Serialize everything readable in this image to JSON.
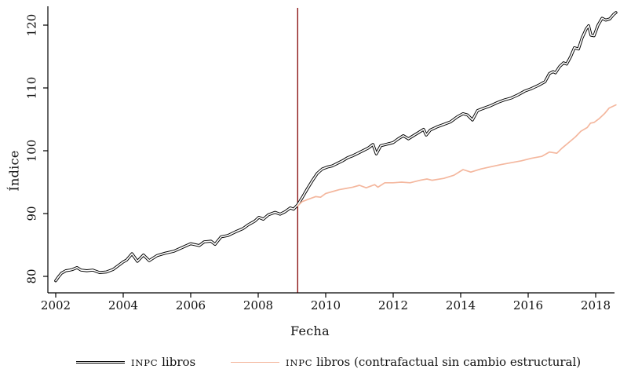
{
  "axis": {
    "ylabel": "Índice",
    "xlabel": "Fecha"
  },
  "legend": {
    "series1": {
      "acronym": "INPC",
      "rest": "libros"
    },
    "series2": {
      "acronym": "INPC",
      "rest": "libros (contrafactual sin cambio estructural)"
    }
  },
  "colors": {
    "series1_outer": "#000000",
    "series1_inner": "#ffffff",
    "series2": "#f4b79e",
    "vline": "#8c1616",
    "axis": "#000000"
  },
  "chart_data": {
    "type": "line",
    "title": "",
    "xlabel": "Fecha",
    "ylabel": "Índice",
    "x_ticks": [
      2002,
      2004,
      2006,
      2008,
      2010,
      2012,
      2014,
      2016,
      2018
    ],
    "y_ticks": [
      80,
      90,
      100,
      110,
      120
    ],
    "x_range": [
      2001.77,
      2018.65
    ],
    "y_range": [
      78.5,
      123.5
    ],
    "grid": false,
    "legend_position": "bottom",
    "vline": {
      "x": 2009.17,
      "color": "#8c1616"
    },
    "series": [
      {
        "name": "INPC libros",
        "style": "double-black",
        "points": [
          [
            2002.0,
            79.3
          ],
          [
            2002.08,
            79.9
          ],
          [
            2002.17,
            80.5
          ],
          [
            2002.3,
            80.9
          ],
          [
            2002.42,
            81.0
          ],
          [
            2002.5,
            81.1
          ],
          [
            2002.63,
            81.4
          ],
          [
            2002.75,
            81.0
          ],
          [
            2002.92,
            80.9
          ],
          [
            2003.1,
            81.0
          ],
          [
            2003.3,
            80.6
          ],
          [
            2003.5,
            80.7
          ],
          [
            2003.7,
            81.1
          ],
          [
            2003.9,
            81.9
          ],
          [
            2004.0,
            82.3
          ],
          [
            2004.1,
            82.6
          ],
          [
            2004.26,
            83.6
          ],
          [
            2004.42,
            82.4
          ],
          [
            2004.6,
            83.4
          ],
          [
            2004.77,
            82.5
          ],
          [
            2005.0,
            83.3
          ],
          [
            2005.25,
            83.7
          ],
          [
            2005.5,
            84.0
          ],
          [
            2005.75,
            84.6
          ],
          [
            2006.0,
            85.2
          ],
          [
            2006.25,
            84.9
          ],
          [
            2006.4,
            85.5
          ],
          [
            2006.6,
            85.6
          ],
          [
            2006.72,
            85.1
          ],
          [
            2006.9,
            86.3
          ],
          [
            2007.1,
            86.5
          ],
          [
            2007.33,
            87.1
          ],
          [
            2007.55,
            87.6
          ],
          [
            2007.7,
            88.2
          ],
          [
            2007.9,
            88.8
          ],
          [
            2008.02,
            89.4
          ],
          [
            2008.15,
            89.1
          ],
          [
            2008.3,
            89.8
          ],
          [
            2008.5,
            90.2
          ],
          [
            2008.65,
            89.9
          ],
          [
            2008.8,
            90.3
          ],
          [
            2008.95,
            90.9
          ],
          [
            2009.05,
            90.7
          ],
          [
            2009.17,
            91.4
          ],
          [
            2009.3,
            92.5
          ],
          [
            2009.45,
            93.9
          ],
          [
            2009.6,
            95.2
          ],
          [
            2009.75,
            96.4
          ],
          [
            2009.9,
            97.1
          ],
          [
            2010.05,
            97.4
          ],
          [
            2010.2,
            97.6
          ],
          [
            2010.35,
            98.0
          ],
          [
            2010.5,
            98.4
          ],
          [
            2010.65,
            98.9
          ],
          [
            2010.8,
            99.2
          ],
          [
            2010.95,
            99.6
          ],
          [
            2011.1,
            100.0
          ],
          [
            2011.25,
            100.4
          ],
          [
            2011.4,
            101.0
          ],
          [
            2011.5,
            99.5
          ],
          [
            2011.63,
            100.8
          ],
          [
            2011.85,
            101.1
          ],
          [
            2012.0,
            101.3
          ],
          [
            2012.15,
            101.9
          ],
          [
            2012.3,
            102.4
          ],
          [
            2012.45,
            101.9
          ],
          [
            2012.6,
            102.4
          ],
          [
            2012.75,
            102.9
          ],
          [
            2012.9,
            103.4
          ],
          [
            2012.98,
            102.5
          ],
          [
            2013.1,
            103.3
          ],
          [
            2013.3,
            103.8
          ],
          [
            2013.5,
            104.2
          ],
          [
            2013.7,
            104.6
          ],
          [
            2013.9,
            105.4
          ],
          [
            2014.07,
            105.9
          ],
          [
            2014.2,
            105.7
          ],
          [
            2014.35,
            104.9
          ],
          [
            2014.5,
            106.4
          ],
          [
            2014.7,
            106.8
          ],
          [
            2014.9,
            107.2
          ],
          [
            2015.1,
            107.7
          ],
          [
            2015.3,
            108.1
          ],
          [
            2015.5,
            108.4
          ],
          [
            2015.7,
            108.9
          ],
          [
            2015.9,
            109.5
          ],
          [
            2016.1,
            109.9
          ],
          [
            2016.3,
            110.4
          ],
          [
            2016.5,
            111.0
          ],
          [
            2016.63,
            112.3
          ],
          [
            2016.74,
            112.6
          ],
          [
            2016.81,
            112.4
          ],
          [
            2016.93,
            113.4
          ],
          [
            2017.05,
            114.0
          ],
          [
            2017.14,
            113.8
          ],
          [
            2017.26,
            115.0
          ],
          [
            2017.37,
            116.4
          ],
          [
            2017.49,
            116.2
          ],
          [
            2017.6,
            118.0
          ],
          [
            2017.72,
            119.4
          ],
          [
            2017.79,
            119.9
          ],
          [
            2017.86,
            118.4
          ],
          [
            2017.95,
            118.3
          ],
          [
            2018.07,
            120.0
          ],
          [
            2018.19,
            121.1
          ],
          [
            2018.3,
            120.8
          ],
          [
            2018.42,
            121.0
          ],
          [
            2018.53,
            121.7
          ],
          [
            2018.6,
            122.0
          ]
        ]
      },
      {
        "name": "INPC libros (contrafactual sin cambio estructural)",
        "style": "solid",
        "color": "#f4b79e",
        "points": [
          [
            2009.17,
            91.2
          ],
          [
            2009.3,
            91.9
          ],
          [
            2009.5,
            92.3
          ],
          [
            2009.7,
            92.7
          ],
          [
            2009.85,
            92.6
          ],
          [
            2010.0,
            93.2
          ],
          [
            2010.2,
            93.5
          ],
          [
            2010.4,
            93.8
          ],
          [
            2010.6,
            94.0
          ],
          [
            2010.8,
            94.2
          ],
          [
            2011.0,
            94.5
          ],
          [
            2011.2,
            94.1
          ],
          [
            2011.45,
            94.6
          ],
          [
            2011.55,
            94.2
          ],
          [
            2011.75,
            94.9
          ],
          [
            2012.0,
            94.9
          ],
          [
            2012.25,
            95.0
          ],
          [
            2012.5,
            94.9
          ],
          [
            2012.8,
            95.3
          ],
          [
            2013.0,
            95.5
          ],
          [
            2013.15,
            95.3
          ],
          [
            2013.5,
            95.6
          ],
          [
            2013.8,
            96.1
          ],
          [
            2014.07,
            97.0
          ],
          [
            2014.3,
            96.6
          ],
          [
            2014.6,
            97.1
          ],
          [
            2014.85,
            97.4
          ],
          [
            2015.2,
            97.8
          ],
          [
            2015.5,
            98.1
          ],
          [
            2015.8,
            98.4
          ],
          [
            2016.1,
            98.8
          ],
          [
            2016.4,
            99.1
          ],
          [
            2016.63,
            99.8
          ],
          [
            2016.85,
            99.6
          ],
          [
            2017.0,
            100.4
          ],
          [
            2017.2,
            101.3
          ],
          [
            2017.4,
            102.2
          ],
          [
            2017.56,
            103.1
          ],
          [
            2017.75,
            103.7
          ],
          [
            2017.85,
            104.4
          ],
          [
            2017.95,
            104.5
          ],
          [
            2018.1,
            105.1
          ],
          [
            2018.26,
            105.9
          ],
          [
            2018.4,
            106.8
          ],
          [
            2018.6,
            107.3
          ]
        ]
      }
    ]
  }
}
